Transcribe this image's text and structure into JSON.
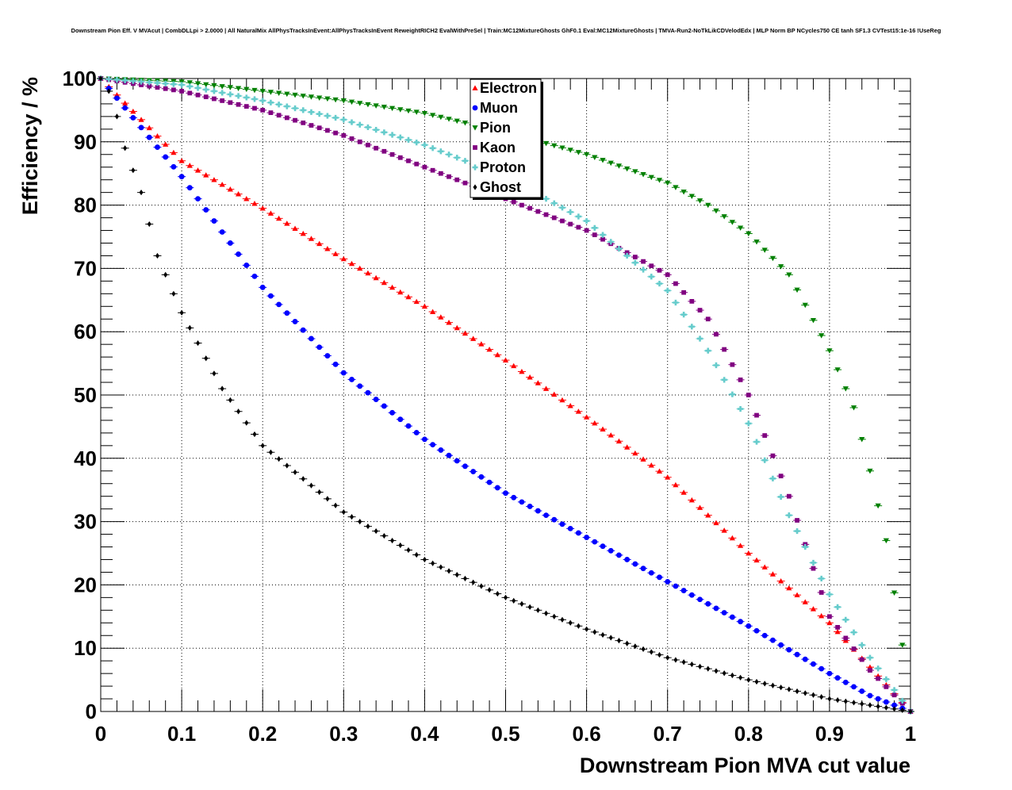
{
  "chart_data": {
    "type": "scatter",
    "title": "Downstream Pion Eff. V MVAcut | CombDLLpi > 2.0000 | All NaturalMix AllPhysTracksInEvent:AllPhysTracksInEvent ReweightRICH2 EvalWithPreSel | Train:MC12MixtureGhosts GhF0.1 Eval:MC12MixtureGhosts | TMVA-Run2-NoTkLikCDVelodEdx | MLP Norm BP NCycles750 CE tanh SF1.3 CVTest15:1e-16 !UseReg",
    "xlabel": "Downstream Pion MVA cut value",
    "ylabel": "Efficiency / %",
    "xlim": [
      0,
      1
    ],
    "ylim": [
      0,
      100
    ],
    "x_ticks": [
      "0",
      "0.1",
      "0.2",
      "0.3",
      "0.4",
      "0.5",
      "0.6",
      "0.7",
      "0.8",
      "0.9",
      "1"
    ],
    "y_ticks": [
      "0",
      "10",
      "20",
      "30",
      "40",
      "50",
      "60",
      "70",
      "80",
      "90",
      "100"
    ],
    "grid": true,
    "legend_position": "top-center",
    "series": [
      {
        "name": "Electron",
        "color": "#ff0000",
        "marker": "triangle-up",
        "points": [
          [
            0,
            100
          ],
          [
            0.1,
            87
          ],
          [
            0.2,
            79.5
          ],
          [
            0.3,
            71.5
          ],
          [
            0.4,
            64
          ],
          [
            0.5,
            55.5
          ],
          [
            0.6,
            46.5
          ],
          [
            0.7,
            37
          ],
          [
            0.8,
            25
          ],
          [
            0.9,
            14
          ],
          [
            0.95,
            7
          ],
          [
            1,
            0
          ]
        ]
      },
      {
        "name": "Muon",
        "color": "#0000ff",
        "marker": "circle",
        "points": [
          [
            0,
            100
          ],
          [
            0.1,
            84.5
          ],
          [
            0.2,
            67
          ],
          [
            0.3,
            53.5
          ],
          [
            0.4,
            43
          ],
          [
            0.5,
            34.5
          ],
          [
            0.6,
            27.5
          ],
          [
            0.7,
            20.5
          ],
          [
            0.8,
            13.5
          ],
          [
            0.9,
            6
          ],
          [
            0.95,
            2.5
          ],
          [
            1,
            0
          ]
        ]
      },
      {
        "name": "Pion",
        "color": "#008000",
        "marker": "triangle-down",
        "points": [
          [
            0,
            100
          ],
          [
            0.1,
            99.5
          ],
          [
            0.2,
            98
          ],
          [
            0.3,
            96.5
          ],
          [
            0.4,
            94.5
          ],
          [
            0.5,
            91.5
          ],
          [
            0.6,
            88
          ],
          [
            0.7,
            83.5
          ],
          [
            0.75,
            80
          ],
          [
            0.8,
            75.5
          ],
          [
            0.85,
            69
          ],
          [
            0.9,
            57
          ],
          [
            0.93,
            48
          ],
          [
            0.95,
            38
          ],
          [
            0.97,
            27
          ],
          [
            0.99,
            10.5
          ],
          [
            1,
            0
          ]
        ]
      },
      {
        "name": "Kaon",
        "color": "#800080",
        "marker": "square",
        "points": [
          [
            0,
            100
          ],
          [
            0.1,
            98
          ],
          [
            0.2,
            95
          ],
          [
            0.3,
            91
          ],
          [
            0.4,
            86
          ],
          [
            0.5,
            81
          ],
          [
            0.6,
            76
          ],
          [
            0.7,
            69
          ],
          [
            0.75,
            62
          ],
          [
            0.8,
            50
          ],
          [
            0.85,
            34
          ],
          [
            0.9,
            15
          ],
          [
            0.95,
            6.5
          ],
          [
            1,
            0
          ]
        ]
      },
      {
        "name": "Proton",
        "color": "#66cccc",
        "marker": "cross",
        "points": [
          [
            0,
            100
          ],
          [
            0.1,
            99
          ],
          [
            0.2,
            96.5
          ],
          [
            0.3,
            93.5
          ],
          [
            0.4,
            89.5
          ],
          [
            0.5,
            84.5
          ],
          [
            0.6,
            77.5
          ],
          [
            0.7,
            66.5
          ],
          [
            0.75,
            57
          ],
          [
            0.8,
            45.5
          ],
          [
            0.85,
            31
          ],
          [
            0.9,
            18.5
          ],
          [
            0.95,
            8.5
          ],
          [
            1,
            0
          ]
        ]
      },
      {
        "name": "Ghost",
        "color": "#000000",
        "marker": "diamond",
        "points": [
          [
            0,
            100
          ],
          [
            0.01,
            98
          ],
          [
            0.02,
            94
          ],
          [
            0.03,
            89
          ],
          [
            0.05,
            82
          ],
          [
            0.07,
            72
          ],
          [
            0.1,
            63
          ],
          [
            0.15,
            51
          ],
          [
            0.2,
            42
          ],
          [
            0.3,
            31.5
          ],
          [
            0.4,
            24
          ],
          [
            0.5,
            18
          ],
          [
            0.6,
            13
          ],
          [
            0.7,
            8.5
          ],
          [
            0.8,
            5
          ],
          [
            0.9,
            2
          ],
          [
            0.95,
            1
          ],
          [
            1,
            0
          ]
        ]
      }
    ]
  }
}
